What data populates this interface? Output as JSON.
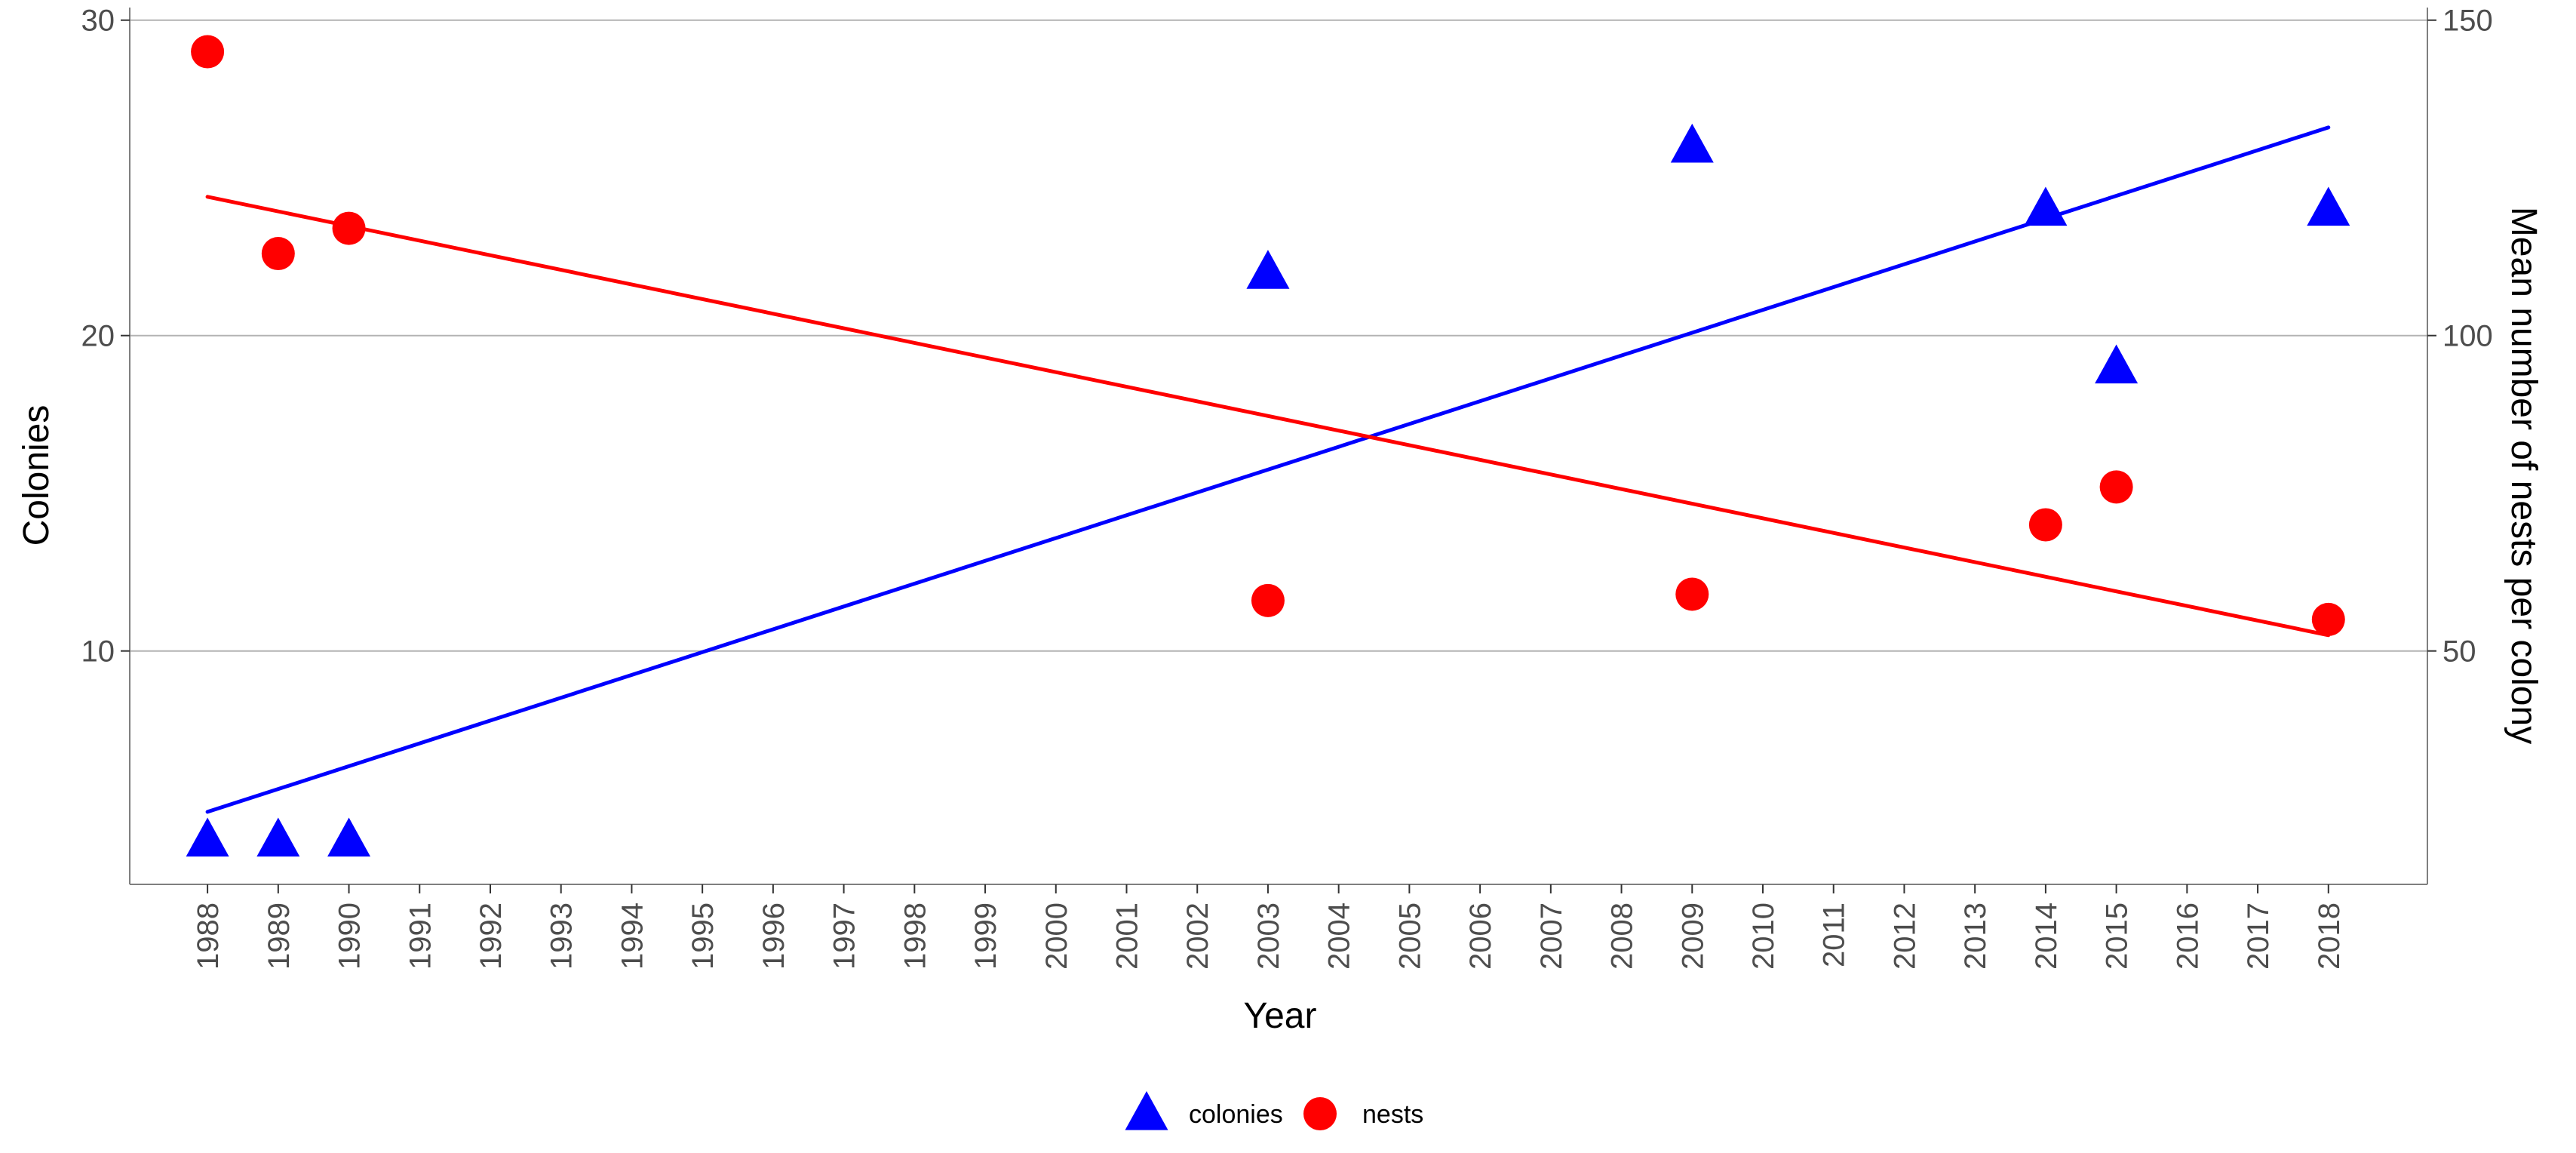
{
  "chart_data": {
    "type": "scatter",
    "title": "",
    "xlabel": "Year",
    "ylabel": "Colonies",
    "y2label": "Mean number of nests per colony",
    "x_ticks": [
      1988,
      1989,
      1990,
      1991,
      1992,
      1993,
      1994,
      1995,
      1996,
      1997,
      1998,
      1999,
      2000,
      2001,
      2002,
      2003,
      2004,
      2005,
      2006,
      2007,
      2008,
      2009,
      2010,
      2011,
      2012,
      2013,
      2014,
      2015,
      2016,
      2017,
      2018
    ],
    "xlim": [
      1986.9,
      2019.4
    ],
    "ylim": [
      2.6,
      30.4
    ],
    "y2lim": [
      13,
      152
    ],
    "y_ticks": [
      10,
      20,
      30
    ],
    "y2_ticks": [
      50,
      100,
      150
    ],
    "grid": "horizontal major",
    "legend_position": "bottom",
    "series": [
      {
        "name": "colonies",
        "axis": "left",
        "marker": "triangle",
        "color": "#0000ff",
        "points": [
          [
            1988,
            4
          ],
          [
            1989,
            4
          ],
          [
            1990,
            4
          ],
          [
            2003,
            22
          ],
          [
            2009,
            26
          ],
          [
            2014,
            24
          ],
          [
            2015,
            19
          ],
          [
            2018,
            24
          ]
        ],
        "trend": [
          [
            1988,
            4.9
          ],
          [
            2018,
            26.6
          ]
        ]
      },
      {
        "name": "nests",
        "axis": "right",
        "marker": "circle",
        "color": "#ff0000",
        "points": [
          [
            1988,
            145
          ],
          [
            1989,
            113
          ],
          [
            1990,
            117
          ],
          [
            2003,
            58
          ],
          [
            2009,
            59
          ],
          [
            2014,
            70
          ],
          [
            2015,
            76
          ],
          [
            2018,
            55
          ]
        ],
        "trend": [
          [
            1988,
            122
          ],
          [
            2018,
            52.5
          ]
        ]
      }
    ]
  }
}
